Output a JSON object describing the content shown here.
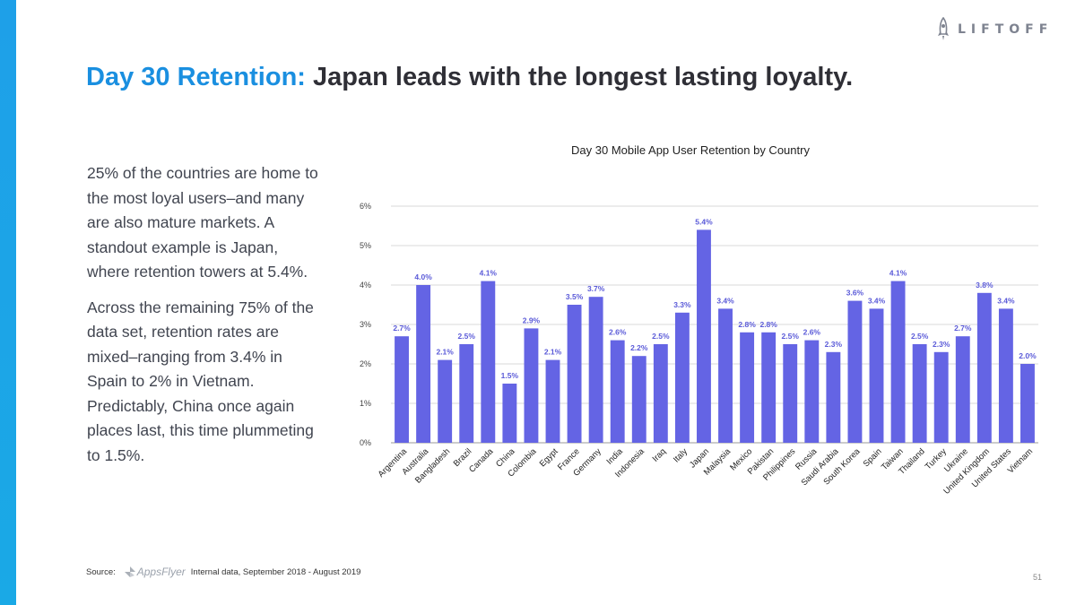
{
  "brand": {
    "logo_text": "LIFTOFF"
  },
  "header": {
    "title_accent": "Day 30 Retention:",
    "title_rest": "Japan leads with the longest lasting loyalty."
  },
  "body": {
    "paragraph_1": "25% of the countries are home to the most loyal users–and many are also mature markets. A standout example is Japan, where retention towers at 5.4%.",
    "paragraph_2": "Across the remaining 75% of the data set, retention rates are mixed–ranging from 3.4% in Spain to 2% in Vietnam. Predictably, China once again places last, this time plummeting to 1.5%."
  },
  "footer": {
    "source_label": "Source:",
    "source_logo_text": "AppsFlyer",
    "source_text": "Internal data, September 2018 - August 2019",
    "page_number": "51"
  },
  "colors": {
    "accent": "#1a8fe0",
    "bar": "#6464e4",
    "side_bar": "#1ea0e8"
  },
  "chart_data": {
    "type": "bar",
    "title": "Day 30 Mobile App User Retention by Country",
    "categories": [
      "Argentina",
      "Australia",
      "Bangladesh",
      "Brazil",
      "Canada",
      "China",
      "Colombia",
      "Egypt",
      "France",
      "Germany",
      "India",
      "Indonesia",
      "Iraq",
      "Italy",
      "Japan",
      "Malaysia",
      "Mexico",
      "Pakistan",
      "Philippines",
      "Russia",
      "Saudi Arabia",
      "South Korea",
      "Spain",
      "Taiwan",
      "Thailand",
      "Turkey",
      "Ukraine",
      "United Kingdom",
      "United States",
      "Vietnam"
    ],
    "values": [
      2.7,
      4.0,
      2.1,
      2.5,
      4.1,
      1.5,
      2.9,
      2.1,
      3.5,
      3.7,
      2.6,
      2.2,
      2.5,
      3.3,
      5.4,
      3.4,
      2.8,
      2.8,
      2.5,
      2.6,
      2.3,
      3.6,
      3.4,
      4.1,
      2.5,
      2.3,
      2.7,
      3.8,
      3.4,
      2.0
    ],
    "data_labels": [
      "2.7%",
      "4.0%",
      "2.1%",
      "2.5%",
      "4.1%",
      "1.5%",
      "2.9%",
      "2.1%",
      "3.5%",
      "3.7%",
      "2.6%",
      "2.2%",
      "2.5%",
      "3.3%",
      "5.4%",
      "3.4%",
      "2.8%",
      "2.8%",
      "2.5%",
      "2.6%",
      "2.3%",
      "3.6%",
      "3.4%",
      "4.1%",
      "2.5%",
      "2.3%",
      "2.7%",
      "3.8%",
      "3.4%",
      "2.0%"
    ],
    "y_ticks": [
      "0%",
      "1%",
      "2%",
      "3%",
      "4%",
      "5%",
      "6%"
    ],
    "ylim": [
      0,
      6
    ],
    "grid": true,
    "xlabel": "",
    "ylabel": ""
  }
}
